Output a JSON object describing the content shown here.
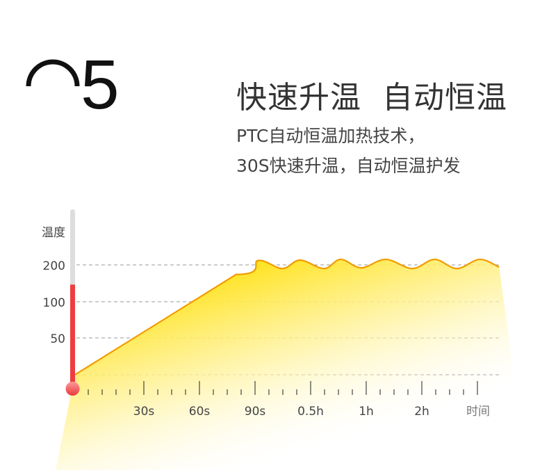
{
  "header": {
    "number": "5",
    "title": "快速升温  自动恒温",
    "subtitle_lines": [
      "PTC自动恒温加热技术，",
      "30S快速升温，自动恒温护发"
    ]
  },
  "chart_data": {
    "type": "area",
    "ylabel": "温度",
    "xlabel": "时间",
    "y_ticks": [
      200,
      100,
      50
    ],
    "x_ticks": [
      "30s",
      "60s",
      "90s",
      "0.5h",
      "1h",
      "2h"
    ],
    "grid": "horizontal dashed",
    "series": [
      {
        "points": [
          [
            -0.24,
            0
          ],
          [
            2.66,
            174
          ],
          [
            3.06,
            212
          ],
          [
            3.49,
            190
          ],
          [
            3.81,
            213
          ],
          [
            4.24,
            190
          ],
          [
            4.54,
            215
          ],
          [
            4.91,
            192
          ],
          [
            5.35,
            215
          ],
          [
            5.83,
            190
          ],
          [
            6.23,
            215
          ],
          [
            6.63,
            190
          ],
          [
            7.04,
            215
          ],
          [
            7.39,
            194
          ]
        ]
      }
    ],
    "thermometer_level": 0.58,
    "colors": {
      "line": "#f29b00",
      "fill": "#ffe53a",
      "thermo": "#ef3d3f",
      "tube": "#dddddd"
    }
  }
}
